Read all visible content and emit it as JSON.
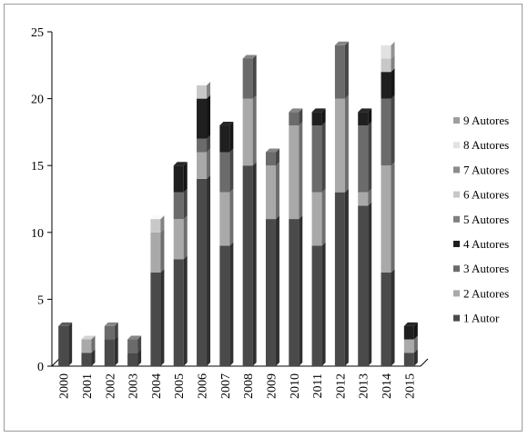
{
  "chart_data": {
    "type": "bar",
    "stacked": true,
    "style": "3d",
    "title": "",
    "xlabel": "",
    "ylabel": "",
    "ylim": [
      0,
      25
    ],
    "yticks": [
      0,
      5,
      10,
      15,
      20,
      25
    ],
    "grid": false,
    "legend_position": "right",
    "categories": [
      "2000",
      "2001",
      "2002",
      "2003",
      "2004",
      "2005",
      "2006",
      "2007",
      "2008",
      "2009",
      "2010",
      "2011",
      "2012",
      "2013",
      "2014",
      "2015"
    ],
    "series": [
      {
        "name": "1 Autor",
        "color": "#4a4a4a",
        "values": [
          3,
          1,
          2,
          1,
          7,
          8,
          14,
          9,
          15,
          11,
          11,
          9,
          13,
          12,
          7,
          1
        ]
      },
      {
        "name": "2 Autores",
        "color": "#a9a9a9",
        "values": [
          0,
          1,
          0,
          0,
          3,
          3,
          2,
          4,
          5,
          4,
          7,
          4,
          7,
          1,
          8,
          1
        ]
      },
      {
        "name": "3 Autores",
        "color": "#6b6b6b",
        "values": [
          0,
          0,
          1,
          1,
          0,
          2,
          1,
          3,
          3,
          1,
          1,
          5,
          4,
          5,
          5,
          0
        ]
      },
      {
        "name": "4 Autores",
        "color": "#1f1f1f",
        "values": [
          0,
          0,
          0,
          0,
          0,
          2,
          3,
          2,
          0,
          0,
          0,
          1,
          0,
          1,
          2,
          1
        ]
      },
      {
        "name": "5 Autores",
        "color": "#808080",
        "values": [
          0,
          0,
          0,
          0,
          0,
          0,
          0,
          0,
          0,
          0,
          0,
          0,
          0,
          0,
          0,
          0
        ]
      },
      {
        "name": "6 Autores",
        "color": "#c8c8c8",
        "values": [
          0,
          0,
          0,
          0,
          1,
          0,
          1,
          0,
          0,
          0,
          0,
          0,
          0,
          0,
          1,
          0
        ]
      },
      {
        "name": "7 Autores",
        "color": "#8c8c8c",
        "values": [
          0,
          0,
          0,
          0,
          0,
          0,
          0,
          0,
          0,
          0,
          0,
          0,
          0,
          0,
          0,
          0
        ]
      },
      {
        "name": "8 Autores",
        "color": "#e2e2e2",
        "values": [
          0,
          0,
          0,
          0,
          0,
          0,
          0,
          0,
          0,
          0,
          0,
          0,
          0,
          0,
          1,
          0
        ]
      },
      {
        "name": "9 Autores",
        "color": "#9f9f9f",
        "values": [
          0,
          0,
          0,
          0,
          0,
          0,
          0,
          0,
          0,
          0,
          0,
          0,
          0,
          0,
          0,
          0
        ]
      }
    ]
  }
}
